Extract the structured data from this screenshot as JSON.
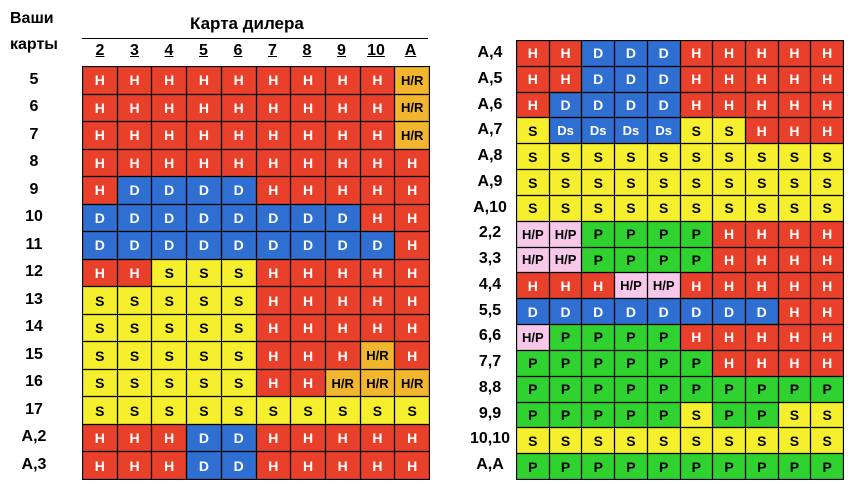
{
  "header": {
    "your_cards_line1": "Ваши",
    "your_cards_line2": "карты",
    "dealer_card_title": "Карта дилера",
    "dealer_columns": [
      "2",
      "3",
      "4",
      "5",
      "6",
      "7",
      "8",
      "9",
      "10",
      "A"
    ]
  },
  "left_table": {
    "rows": [
      {
        "label": "5",
        "cells": [
          "H",
          "H",
          "H",
          "H",
          "H",
          "H",
          "H",
          "H",
          "H",
          "H/R"
        ]
      },
      {
        "label": "6",
        "cells": [
          "H",
          "H",
          "H",
          "H",
          "H",
          "H",
          "H",
          "H",
          "H",
          "H/R"
        ]
      },
      {
        "label": "7",
        "cells": [
          "H",
          "H",
          "H",
          "H",
          "H",
          "H",
          "H",
          "H",
          "H",
          "H/R"
        ]
      },
      {
        "label": "8",
        "cells": [
          "H",
          "H",
          "H",
          "H",
          "H",
          "H",
          "H",
          "H",
          "H",
          "H"
        ]
      },
      {
        "label": "9",
        "cells": [
          "H",
          "D",
          "D",
          "D",
          "D",
          "H",
          "H",
          "H",
          "H",
          "H"
        ]
      },
      {
        "label": "10",
        "cells": [
          "D",
          "D",
          "D",
          "D",
          "D",
          "D",
          "D",
          "D",
          "H",
          "H"
        ]
      },
      {
        "label": "11",
        "cells": [
          "D",
          "D",
          "D",
          "D",
          "D",
          "D",
          "D",
          "D",
          "D",
          "H"
        ]
      },
      {
        "label": "12",
        "cells": [
          "H",
          "H",
          "S",
          "S",
          "S",
          "H",
          "H",
          "H",
          "H",
          "H"
        ]
      },
      {
        "label": "13",
        "cells": [
          "S",
          "S",
          "S",
          "S",
          "S",
          "H",
          "H",
          "H",
          "H",
          "H"
        ]
      },
      {
        "label": "14",
        "cells": [
          "S",
          "S",
          "S",
          "S",
          "S",
          "H",
          "H",
          "H",
          "H",
          "H"
        ]
      },
      {
        "label": "15",
        "cells": [
          "S",
          "S",
          "S",
          "S",
          "S",
          "H",
          "H",
          "H",
          "H/R",
          "H"
        ]
      },
      {
        "label": "16",
        "cells": [
          "S",
          "S",
          "S",
          "S",
          "S",
          "H",
          "H",
          "H/R",
          "H/R",
          "H/R"
        ]
      },
      {
        "label": "17",
        "cells": [
          "S",
          "S",
          "S",
          "S",
          "S",
          "S",
          "S",
          "S",
          "S",
          "S"
        ]
      },
      {
        "label": "A,2",
        "cells": [
          "H",
          "H",
          "H",
          "D",
          "D",
          "H",
          "H",
          "H",
          "H",
          "H"
        ]
      },
      {
        "label": "A,3",
        "cells": [
          "H",
          "H",
          "H",
          "D",
          "D",
          "H",
          "H",
          "H",
          "H",
          "H"
        ]
      }
    ]
  },
  "right_table": {
    "rows": [
      {
        "label": "A,4",
        "cells": [
          "H",
          "H",
          "D",
          "D",
          "D",
          "H",
          "H",
          "H",
          "H",
          "H"
        ]
      },
      {
        "label": "A,5",
        "cells": [
          "H",
          "H",
          "D",
          "D",
          "D",
          "H",
          "H",
          "H",
          "H",
          "H"
        ]
      },
      {
        "label": "A,6",
        "cells": [
          "H",
          "D",
          "D",
          "D",
          "D",
          "H",
          "H",
          "H",
          "H",
          "H"
        ]
      },
      {
        "label": "A,7",
        "cells": [
          "S",
          "Ds",
          "Ds",
          "Ds",
          "Ds",
          "S",
          "S",
          "H",
          "H",
          "H"
        ]
      },
      {
        "label": "A,8",
        "cells": [
          "S",
          "S",
          "S",
          "S",
          "S",
          "S",
          "S",
          "S",
          "S",
          "S"
        ]
      },
      {
        "label": "A,9",
        "cells": [
          "S",
          "S",
          "S",
          "S",
          "S",
          "S",
          "S",
          "S",
          "S",
          "S"
        ]
      },
      {
        "label": "A,10",
        "cells": [
          "S",
          "S",
          "S",
          "S",
          "S",
          "S",
          "S",
          "S",
          "S",
          "S"
        ]
      },
      {
        "label": "2,2",
        "cells": [
          "H/P",
          "H/P",
          "P",
          "P",
          "P",
          "P",
          "H",
          "H",
          "H",
          "H"
        ]
      },
      {
        "label": "3,3",
        "cells": [
          "H/P",
          "H/P",
          "P",
          "P",
          "P",
          "P",
          "H",
          "H",
          "H",
          "H"
        ]
      },
      {
        "label": "4,4",
        "cells": [
          "H",
          "H",
          "H",
          "H/P",
          "H/P",
          "H",
          "H",
          "H",
          "H",
          "H"
        ]
      },
      {
        "label": "5,5",
        "cells": [
          "D",
          "D",
          "D",
          "D",
          "D",
          "D",
          "D",
          "D",
          "H",
          "H"
        ]
      },
      {
        "label": "6,6",
        "cells": [
          "H/P",
          "P",
          "P",
          "P",
          "P",
          "H",
          "H",
          "H",
          "H",
          "H"
        ]
      },
      {
        "label": "7,7",
        "cells": [
          "P",
          "P",
          "P",
          "P",
          "P",
          "P",
          "H",
          "H",
          "H",
          "H"
        ]
      },
      {
        "label": "8,8",
        "cells": [
          "P",
          "P",
          "P",
          "P",
          "P",
          "P",
          "P",
          "P",
          "P",
          "P"
        ]
      },
      {
        "label": "9,9",
        "cells": [
          "P",
          "P",
          "P",
          "P",
          "P",
          "S",
          "P",
          "P",
          "S",
          "S"
        ]
      },
      {
        "label": "10,10",
        "cells": [
          "S",
          "S",
          "S",
          "S",
          "S",
          "S",
          "S",
          "S",
          "S",
          "S"
        ]
      },
      {
        "label": "A,A",
        "cells": [
          "P",
          "P",
          "P",
          "P",
          "P",
          "P",
          "P",
          "P",
          "P",
          "P"
        ]
      }
    ]
  },
  "colors": {
    "H": "#e8402a",
    "D": "#2e6fd1",
    "Ds": "#2e6fd1",
    "S": "#f5ef2e",
    "H/R": "#f2b62e",
    "H/P": "#f8c8ea",
    "P": "#2fd22f"
  }
}
